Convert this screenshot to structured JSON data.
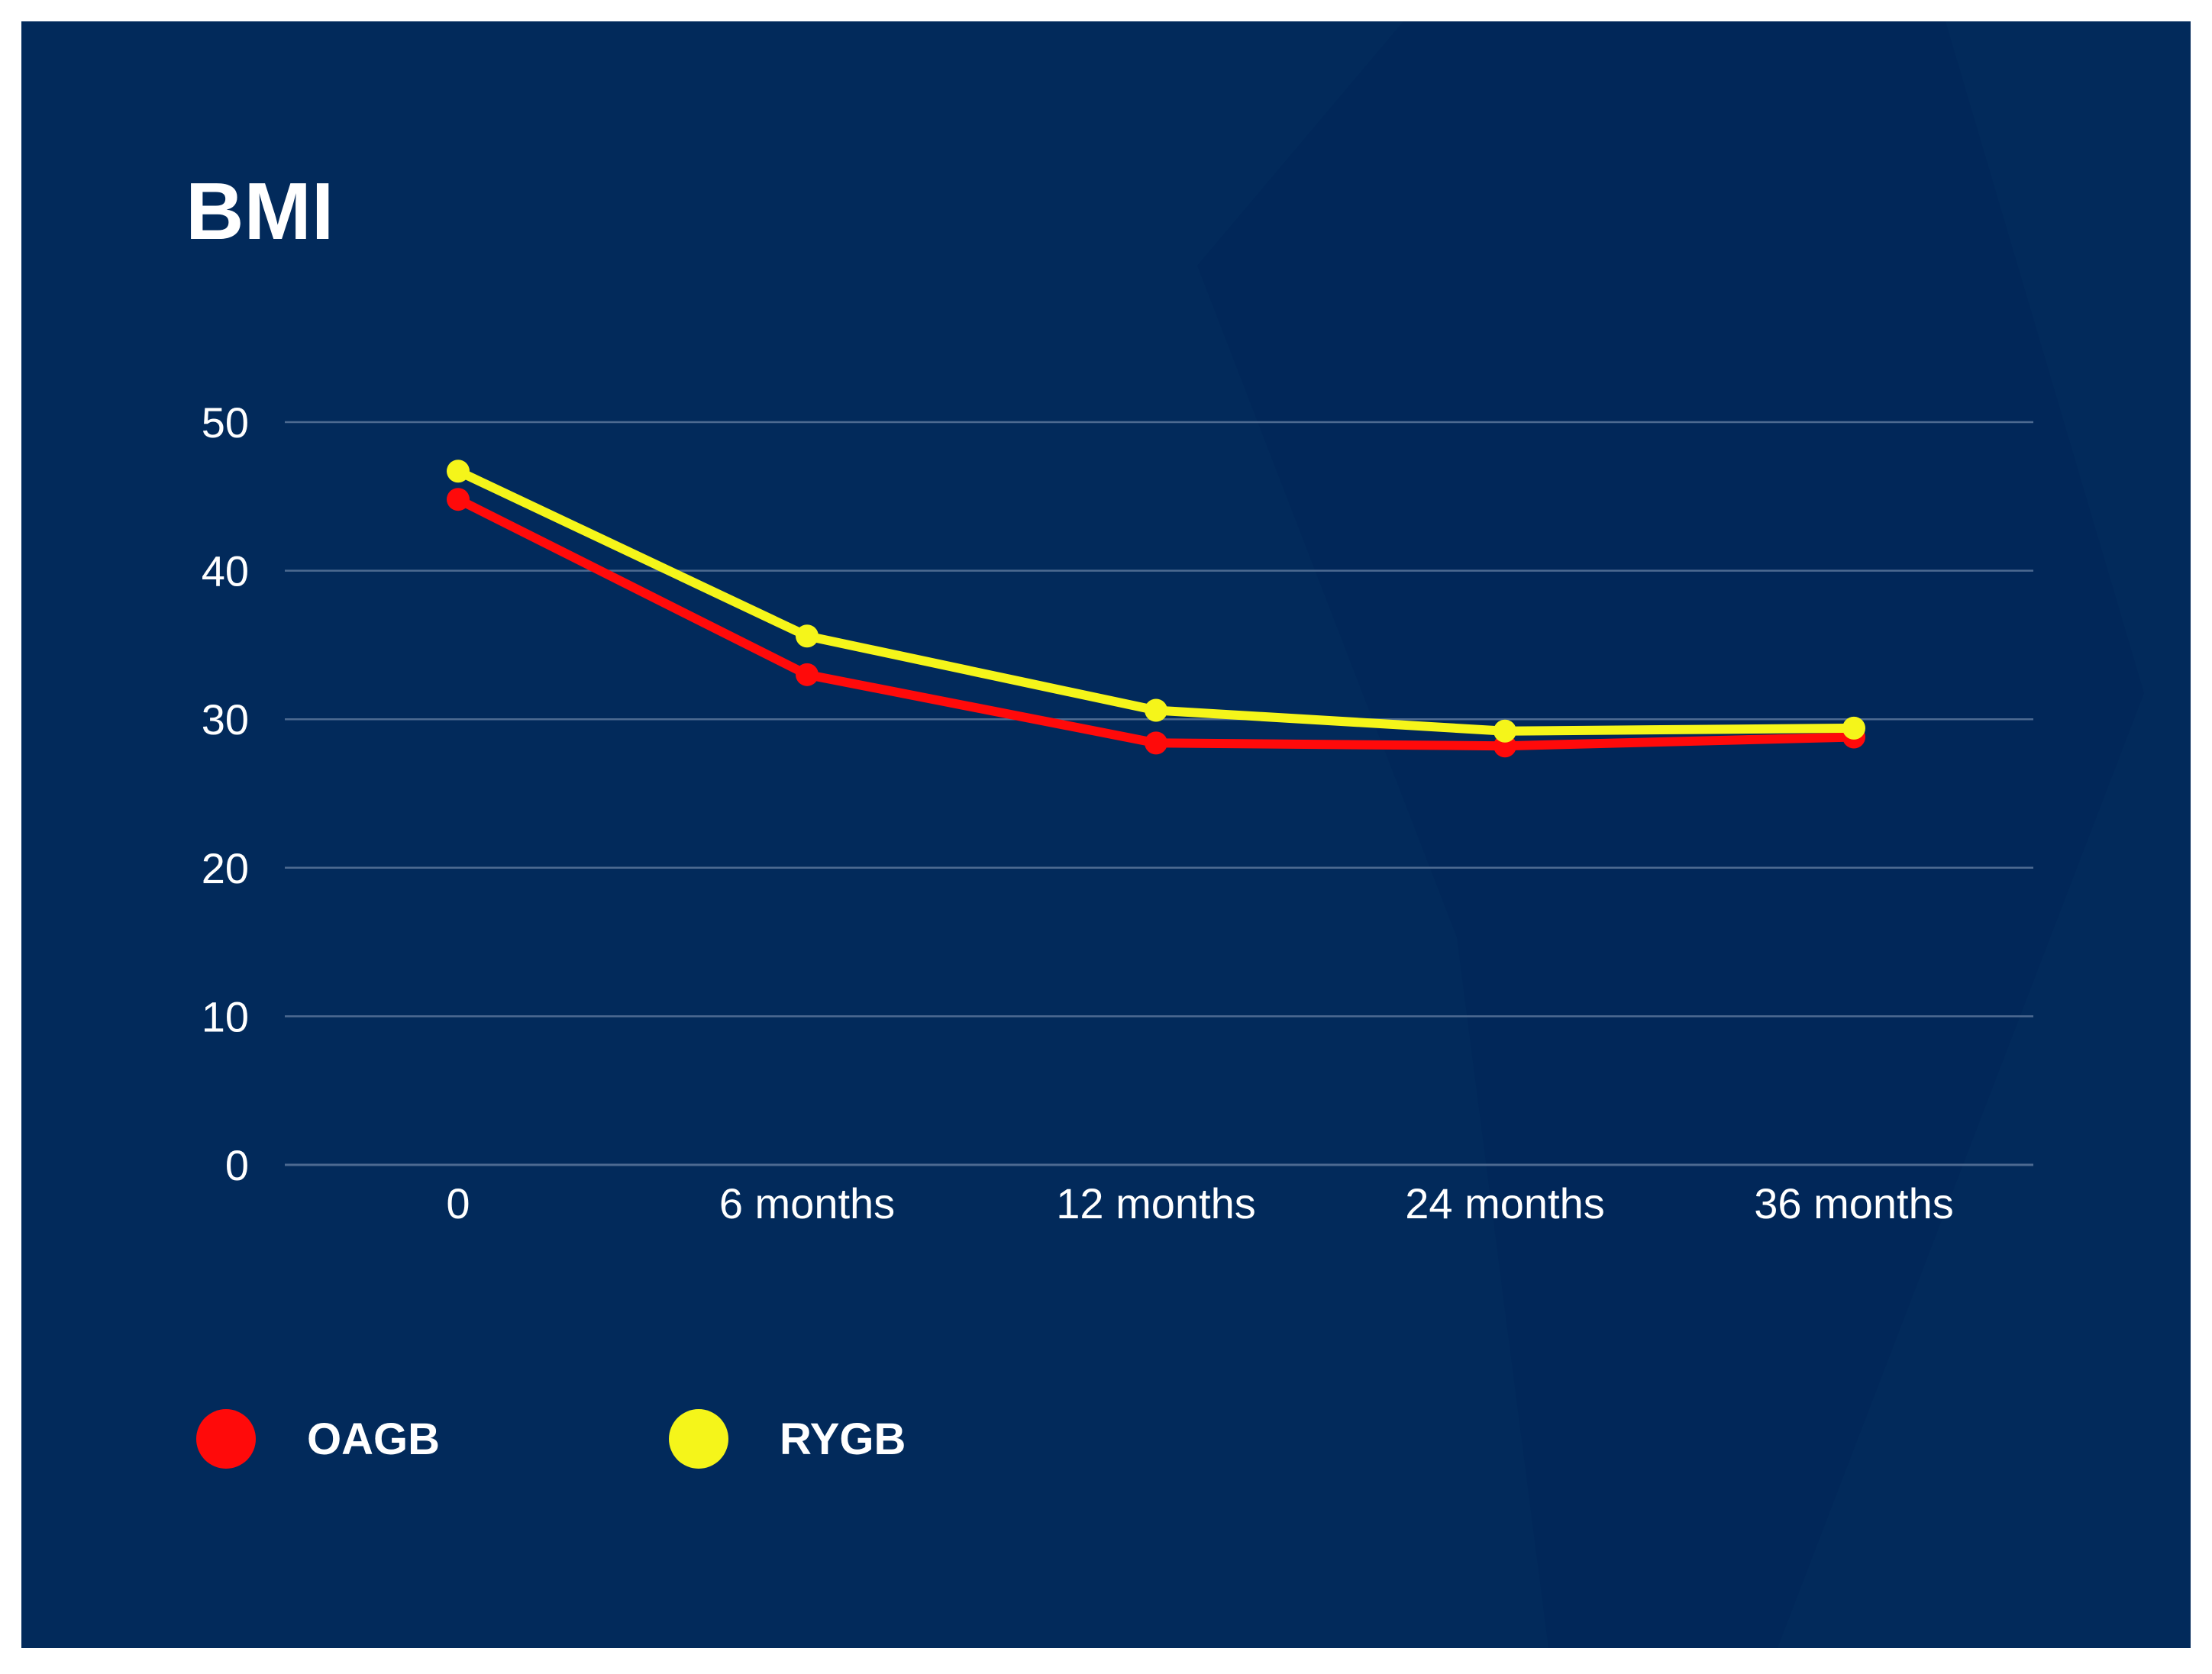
{
  "chart_data": {
    "type": "line",
    "title": "BMI",
    "xlabel": "",
    "ylabel": "",
    "categories": [
      "0",
      "6 months",
      "12 months",
      "24 months",
      "36 months"
    ],
    "yticks": [
      "0",
      "10",
      "20",
      "30",
      "40",
      "50"
    ],
    "ylim": [
      0,
      50
    ],
    "grid": true,
    "legend_position": "bottom-left",
    "series": [
      {
        "name": "OAGB",
        "color": "#ff0a0a",
        "values": [
          44.8,
          33.0,
          28.4,
          28.2,
          28.8
        ]
      },
      {
        "name": "RYGB",
        "color": "#f5f51a",
        "values": [
          46.7,
          35.6,
          30.6,
          29.2,
          29.4
        ]
      }
    ]
  },
  "colors": {
    "background": "#022a5b",
    "background_accent": "#012658",
    "text": "#ffffff",
    "grid": "#4d6a91"
  }
}
